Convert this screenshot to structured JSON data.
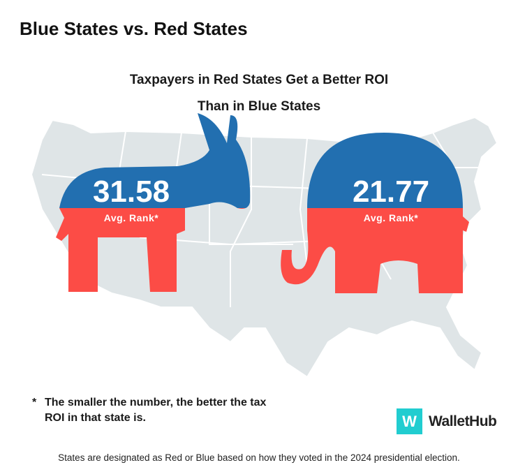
{
  "title": "Blue States vs. Red States",
  "subtitle_line1": "Taxpayers in Red States Get a Better ROI",
  "subtitle_line2": "Than in Blue States",
  "blue": {
    "value": "31.58",
    "label": "Avg. Rank*",
    "symbol": "donkey"
  },
  "red": {
    "value": "21.77",
    "label": "Avg. Rank*",
    "symbol": "elephant"
  },
  "note": {
    "marker": "*",
    "text": "The smaller the number, the better the tax ROI in that state is."
  },
  "logo": {
    "mark": "W",
    "name": "WalletHub"
  },
  "footer": "States are designated as Red or Blue based on how they voted in the 2024 presidential election.",
  "colors": {
    "blue": "#226fb0",
    "red": "#fc4c46",
    "map": "#dfe5e7",
    "logo": "#21cdd0"
  }
}
